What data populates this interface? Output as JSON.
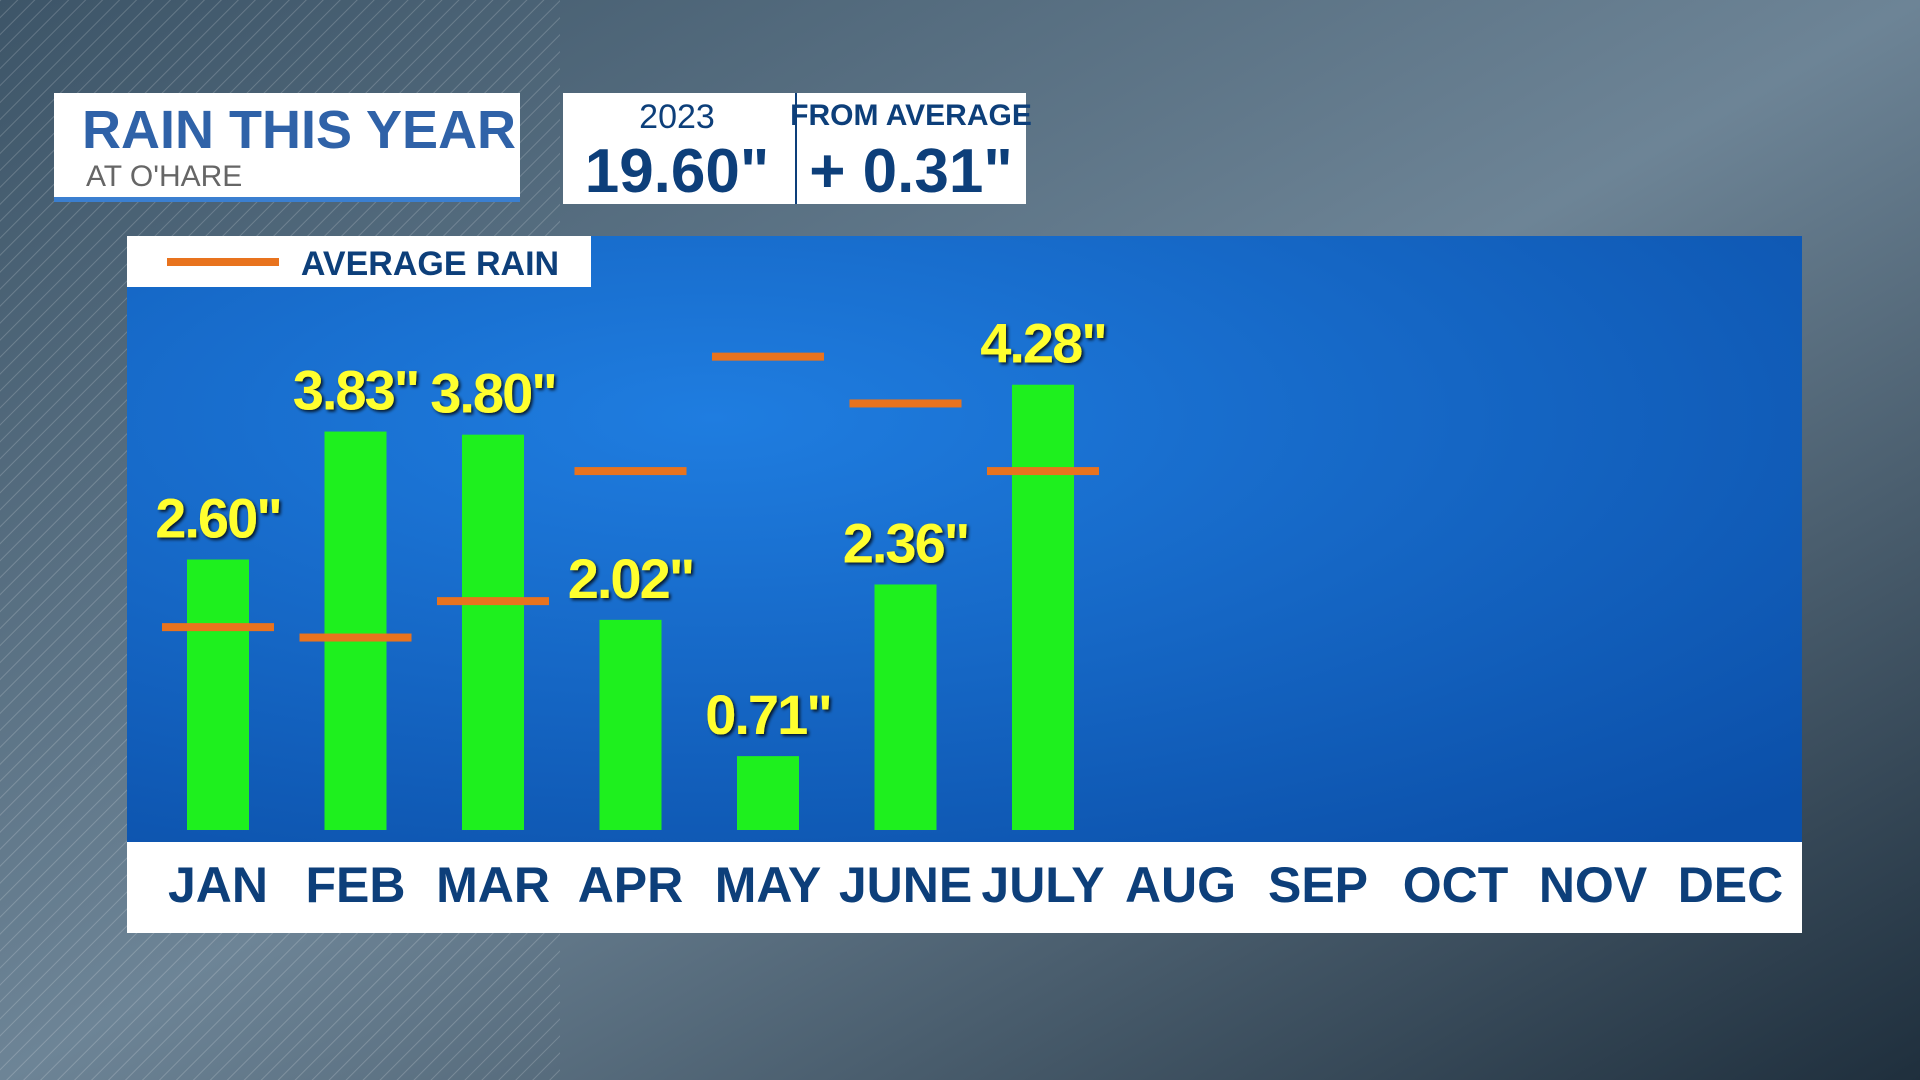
{
  "chart_data": {
    "type": "bar",
    "title": "RAIN THIS YEAR",
    "subtitle": "AT O'HARE",
    "stats": {
      "year_label": "2023",
      "year_total": "19.60\"",
      "average_label": "FROM AVERAGE",
      "average_diff": "+ 0.31\""
    },
    "categories": [
      "JAN",
      "FEB",
      "MAR",
      "APR",
      "MAY",
      "JUNE",
      "JULY",
      "AUG",
      "SEP",
      "OCT",
      "NOV",
      "DEC"
    ],
    "series": [
      {
        "color": "#1ef01e",
        "values": [
          2.6,
          3.83,
          3.8,
          2.02,
          0.71,
          2.36,
          4.28,
          null,
          null,
          null,
          null,
          null
        ],
        "value_labels": [
          "2.60\"",
          "3.83\"",
          "3.80\"",
          "2.02\"",
          "0.71\"",
          "2.36\"",
          "4.28\"",
          null,
          null,
          null,
          null,
          null
        ]
      },
      {
        "name": "AVERAGE RAIN",
        "color": "#e8731e",
        "values": [
          1.95,
          1.85,
          2.2,
          3.45,
          4.55,
          4.1,
          3.45,
          null,
          null,
          null,
          null,
          null
        ]
      }
    ],
    "ylim": [
      0,
      5.7
    ],
    "legend": "top-left"
  }
}
